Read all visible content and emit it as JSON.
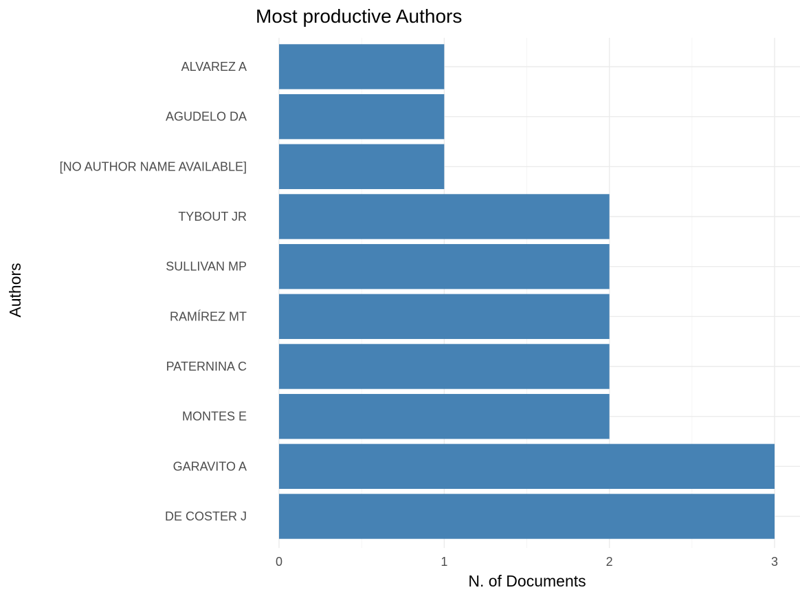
{
  "chart_data": {
    "type": "bar",
    "orientation": "horizontal",
    "title": "Most productive Authors",
    "xlabel": "N. of Documents",
    "ylabel": "Authors",
    "categories": [
      "ALVAREZ A",
      "AGUDELO DA",
      "[NO AUTHOR NAME AVAILABLE]",
      "TYBOUT JR",
      "SULLIVAN MP",
      "RAMÍREZ MT",
      "PATERNINA C",
      "MONTES E",
      "GARAVITO A",
      "DE COSTER J"
    ],
    "values": [
      1,
      1,
      1,
      2,
      2,
      2,
      2,
      2,
      3,
      3
    ],
    "xlim": [
      0,
      3
    ],
    "xticks": [
      0,
      1,
      2,
      3
    ],
    "grid": true,
    "bar_color": "#4682B4"
  }
}
